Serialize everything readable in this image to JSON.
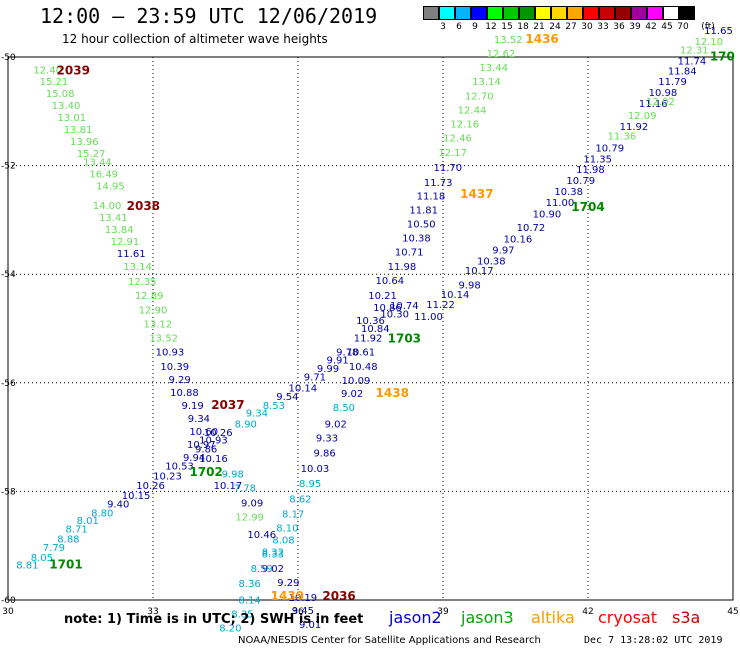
{
  "header": {
    "title": "12:00 – 23:59 UTC 12/06/2019",
    "subtitle": "12 hour collection of altimeter wave heights"
  },
  "legend": {
    "unit": "(ft)",
    "swatches": [
      {
        "color": "#7f7f7f",
        "label": "3"
      },
      {
        "color": "#00ffff",
        "label": "6"
      },
      {
        "color": "#00b4ff",
        "label": "9"
      },
      {
        "color": "#0000ff",
        "label": "12"
      },
      {
        "color": "#00ff00",
        "label": "15"
      },
      {
        "color": "#00c800",
        "label": "18"
      },
      {
        "color": "#009600",
        "label": "21"
      },
      {
        "color": "#ffff00",
        "label": "24"
      },
      {
        "color": "#ffd700",
        "label": "27"
      },
      {
        "color": "#ffa500",
        "label": "30"
      },
      {
        "color": "#ff0000",
        "label": "33"
      },
      {
        "color": "#c80000",
        "label": "36"
      },
      {
        "color": "#960000",
        "label": "39"
      },
      {
        "color": "#a000a0",
        "label": "42"
      },
      {
        "color": "#ff00ff",
        "label": "45"
      },
      {
        "color": "#ffffff",
        "label": "70"
      },
      {
        "color": "#000000",
        "label": ""
      }
    ]
  },
  "map": {
    "x_ticks": [
      "30",
      "33",
      "36",
      "39",
      "42",
      "45"
    ],
    "y_ticks": [
      "-50",
      "-52",
      "-54",
      "-56",
      "-58",
      "-60"
    ],
    "lon_range": [
      30,
      45
    ],
    "lat_range": [
      -50,
      -60
    ]
  },
  "colors": {
    "teal": "#00aacc",
    "lightgreen": "#66dd55",
    "navy": "#0000aa",
    "darkred": "#880000",
    "darkgreen": "#008800",
    "orange": "#ff9900"
  },
  "labels": [
    {
      "t": "12.40",
      "lon": 30.82,
      "lat": -50.3,
      "c": "lightgreen"
    },
    {
      "t": "15.21",
      "lon": 30.95,
      "lat": -50.52,
      "c": "lightgreen"
    },
    {
      "t": "15.08",
      "lon": 31.08,
      "lat": -50.74,
      "c": "lightgreen"
    },
    {
      "t": "13.40",
      "lon": 31.2,
      "lat": -50.96,
      "c": "lightgreen"
    },
    {
      "t": "13.01",
      "lon": 31.32,
      "lat": -51.18,
      "c": "lightgreen"
    },
    {
      "t": "13.81",
      "lon": 31.45,
      "lat": -51.4,
      "c": "lightgreen"
    },
    {
      "t": "13.96",
      "lon": 31.58,
      "lat": -51.62,
      "c": "lightgreen"
    },
    {
      "t": "15.27",
      "lon": 31.72,
      "lat": -51.84,
      "c": "lightgreen"
    },
    {
      "t": "13.44",
      "lon": 31.85,
      "lat": -52.0,
      "c": "lightgreen"
    },
    {
      "t": "16.49",
      "lon": 31.98,
      "lat": -52.22,
      "c": "lightgreen"
    },
    {
      "t": "14.95",
      "lon": 32.12,
      "lat": -52.44,
      "c": "lightgreen"
    },
    {
      "t": "14.00",
      "lon": 32.05,
      "lat": -52.8,
      "c": "lightgreen"
    },
    {
      "t": "13.41",
      "lon": 32.18,
      "lat": -53.02,
      "c": "lightgreen"
    },
    {
      "t": "13.84",
      "lon": 32.3,
      "lat": -53.24,
      "c": "lightgreen"
    },
    {
      "t": "12.91",
      "lon": 32.42,
      "lat": -53.46,
      "c": "lightgreen"
    },
    {
      "t": "11.61",
      "lon": 32.55,
      "lat": -53.68,
      "c": "navy"
    },
    {
      "t": "13.14",
      "lon": 32.68,
      "lat": -53.92,
      "c": "lightgreen"
    },
    {
      "t": "12.35",
      "lon": 32.78,
      "lat": -54.2,
      "c": "lightgreen"
    },
    {
      "t": "12.89",
      "lon": 32.92,
      "lat": -54.46,
      "c": "lightgreen"
    },
    {
      "t": "12.90",
      "lon": 33.0,
      "lat": -54.72,
      "c": "lightgreen"
    },
    {
      "t": "13.12",
      "lon": 33.1,
      "lat": -54.98,
      "c": "lightgreen"
    },
    {
      "t": "13.52",
      "lon": 33.22,
      "lat": -55.24,
      "c": "lightgreen"
    },
    {
      "t": "10.93",
      "lon": 33.35,
      "lat": -55.5,
      "c": "navy"
    },
    {
      "t": "10.39",
      "lon": 33.45,
      "lat": -55.76,
      "c": "navy"
    },
    {
      "t": "9.29",
      "lon": 33.55,
      "lat": -56.0,
      "c": "navy"
    },
    {
      "t": "10.88",
      "lon": 33.65,
      "lat": -56.24,
      "c": "navy"
    },
    {
      "t": "9.19",
      "lon": 33.82,
      "lat": -56.48,
      "c": "navy"
    },
    {
      "t": "9.34",
      "lon": 33.95,
      "lat": -56.72,
      "c": "navy"
    },
    {
      "t": "10.60",
      "lon": 34.05,
      "lat": -56.96,
      "c": "navy"
    },
    {
      "t": "10.26",
      "lon": 34.35,
      "lat": -56.98,
      "c": "navy"
    },
    {
      "t": "10.93",
      "lon": 34.25,
      "lat": -57.12,
      "c": "navy"
    },
    {
      "t": "10.97",
      "lon": 34.0,
      "lat": -57.2,
      "c": "navy"
    },
    {
      "t": "9.86",
      "lon": 34.1,
      "lat": -57.28,
      "c": "navy"
    },
    {
      "t": "9.94",
      "lon": 33.85,
      "lat": -57.44,
      "c": "navy"
    },
    {
      "t": "10.16",
      "lon": 34.25,
      "lat": -57.46,
      "c": "navy"
    },
    {
      "t": "10.53",
      "lon": 33.55,
      "lat": -57.6,
      "c": "navy"
    },
    {
      "t": "10.23",
      "lon": 33.3,
      "lat": -57.78,
      "c": "navy"
    },
    {
      "t": "10.26",
      "lon": 32.95,
      "lat": -57.96,
      "c": "navy"
    },
    {
      "t": "10.15",
      "lon": 32.65,
      "lat": -58.14,
      "c": "navy"
    },
    {
      "t": "9.40",
      "lon": 32.28,
      "lat": -58.3,
      "c": "navy"
    },
    {
      "t": "8.80",
      "lon": 31.95,
      "lat": -58.46,
      "c": "teal"
    },
    {
      "t": "8.01",
      "lon": 31.65,
      "lat": -58.6,
      "c": "teal"
    },
    {
      "t": "8.71",
      "lon": 31.42,
      "lat": -58.76,
      "c": "teal"
    },
    {
      "t": "8.88",
      "lon": 31.25,
      "lat": -58.94,
      "c": "teal"
    },
    {
      "t": "7.79",
      "lon": 30.95,
      "lat": -59.1,
      "c": "teal"
    },
    {
      "t": "8.05",
      "lon": 30.7,
      "lat": -59.28,
      "c": "teal"
    },
    {
      "t": "8.81",
      "lon": 30.4,
      "lat": -59.42,
      "c": "teal"
    },
    {
      "t": "10.17",
      "lon": 34.55,
      "lat": -57.96,
      "c": "navy"
    },
    {
      "t": "9.98",
      "lon": 34.65,
      "lat": -57.74,
      "c": "teal"
    },
    {
      "t": "8.90",
      "lon": 34.92,
      "lat": -56.82,
      "c": "teal"
    },
    {
      "t": "9.34",
      "lon": 35.15,
      "lat": -56.62,
      "c": "teal"
    },
    {
      "t": "8.53",
      "lon": 35.5,
      "lat": -56.48,
      "c": "teal"
    },
    {
      "t": "9.54",
      "lon": 35.78,
      "lat": -56.32,
      "c": "navy"
    },
    {
      "t": "10.14",
      "lon": 36.1,
      "lat": -56.16,
      "c": "navy"
    },
    {
      "t": "9.71",
      "lon": 36.35,
      "lat": -55.96,
      "c": "navy"
    },
    {
      "t": "9.99",
      "lon": 36.62,
      "lat": -55.8,
      "c": "navy"
    },
    {
      "t": "9.91",
      "lon": 36.82,
      "lat": -55.64,
      "c": "navy"
    },
    {
      "t": "9.78",
      "lon": 37.02,
      "lat": -55.5,
      "c": "navy"
    },
    {
      "t": "10.61",
      "lon": 37.3,
      "lat": -55.5,
      "c": "navy"
    },
    {
      "t": "10.48",
      "lon": 37.35,
      "lat": -55.76,
      "c": "navy"
    },
    {
      "t": "10.09",
      "lon": 37.2,
      "lat": -56.02,
      "c": "navy"
    },
    {
      "t": "9.02",
      "lon": 37.12,
      "lat": -56.26,
      "c": "navy"
    },
    {
      "t": "8.50",
      "lon": 36.95,
      "lat": -56.52,
      "c": "teal"
    },
    {
      "t": "9.02",
      "lon": 36.78,
      "lat": -56.82,
      "c": "navy"
    },
    {
      "t": "9.33",
      "lon": 36.6,
      "lat": -57.08,
      "c": "navy"
    },
    {
      "t": "9.86",
      "lon": 36.55,
      "lat": -57.36,
      "c": "navy"
    },
    {
      "t": "10.03",
      "lon": 36.35,
      "lat": -57.64,
      "c": "navy"
    },
    {
      "t": "8.95",
      "lon": 36.25,
      "lat": -57.92,
      "c": "teal"
    },
    {
      "t": "8.62",
      "lon": 36.05,
      "lat": -58.2,
      "c": "teal"
    },
    {
      "t": "8.17",
      "lon": 35.9,
      "lat": -58.48,
      "c": "teal"
    },
    {
      "t": "8.10",
      "lon": 35.78,
      "lat": -58.74,
      "c": "teal"
    },
    {
      "t": "8.08",
      "lon": 35.7,
      "lat": -58.96,
      "c": "teal"
    },
    {
      "t": "8.32",
      "lon": 35.48,
      "lat": -59.18,
      "c": "teal"
    },
    {
      "t": "8.33",
      "lon": 35.48,
      "lat": -59.22,
      "c": "teal"
    },
    {
      "t": "9.02",
      "lon": 35.48,
      "lat": -59.48,
      "c": "navy"
    },
    {
      "t": "9.29",
      "lon": 35.8,
      "lat": -59.74,
      "c": "navy"
    },
    {
      "t": "10.19",
      "lon": 36.1,
      "lat": -60.02,
      "c": "navy"
    },
    {
      "t": "9.45",
      "lon": 36.1,
      "lat": -60.26,
      "c": "navy"
    },
    {
      "t": "9.01",
      "lon": 36.25,
      "lat": -60.52,
      "c": "navy"
    },
    {
      "t": "9.09",
      "lon": 35.05,
      "lat": -58.28,
      "c": "navy"
    },
    {
      "t": "12.99",
      "lon": 35.0,
      "lat": -58.54,
      "c": "lightgreen"
    },
    {
      "t": "10.46",
      "lon": 35.25,
      "lat": -58.86,
      "c": "navy"
    },
    {
      "t": "8.59",
      "lon": 35.25,
      "lat": -59.48,
      "c": "teal"
    },
    {
      "t": "8.36",
      "lon": 35.0,
      "lat": -59.76,
      "c": "teal"
    },
    {
      "t": "8.14",
      "lon": 35.0,
      "lat": -60.06,
      "c": "teal"
    },
    {
      "t": "8.35",
      "lon": 34.85,
      "lat": -60.32,
      "c": "teal"
    },
    {
      "t": "8.20",
      "lon": 34.6,
      "lat": -60.58,
      "c": "teal"
    },
    {
      "t": "7.78",
      "lon": 34.9,
      "lat": -58.0,
      "c": "teal"
    },
    {
      "t": "11.92",
      "lon": 37.45,
      "lat": -55.24,
      "c": "navy"
    },
    {
      "t": "10.84",
      "lon": 37.6,
      "lat": -55.06,
      "c": "navy"
    },
    {
      "t": "10.36",
      "lon": 37.5,
      "lat": -54.92,
      "c": "navy"
    },
    {
      "t": "10.74",
      "lon": 38.2,
      "lat": -54.64,
      "c": "navy"
    },
    {
      "t": "10.86",
      "lon": 37.85,
      "lat": -54.68,
      "c": "navy"
    },
    {
      "t": "10.30",
      "lon": 38.0,
      "lat": -54.8,
      "c": "navy"
    },
    {
      "t": "10.21",
      "lon": 37.75,
      "lat": -54.46,
      "c": "navy"
    },
    {
      "t": "10.64",
      "lon": 37.9,
      "lat": -54.18,
      "c": "navy"
    },
    {
      "t": "11.98",
      "lon": 38.15,
      "lat": -53.92,
      "c": "navy"
    },
    {
      "t": "10.71",
      "lon": 38.3,
      "lat": -53.66,
      "c": "navy"
    },
    {
      "t": "10.38",
      "lon": 38.45,
      "lat": -53.4,
      "c": "navy"
    },
    {
      "t": "10.50",
      "lon": 38.55,
      "lat": -53.14,
      "c": "navy"
    },
    {
      "t": "11.81",
      "lon": 38.6,
      "lat": -52.88,
      "c": "navy"
    },
    {
      "t": "11.18",
      "lon": 38.75,
      "lat": -52.62,
      "c": "navy"
    },
    {
      "t": "11.73",
      "lon": 38.9,
      "lat": -52.38,
      "c": "navy"
    },
    {
      "t": "11.70",
      "lon": 39.1,
      "lat": -52.1,
      "c": "navy"
    },
    {
      "t": "12.17",
      "lon": 39.2,
      "lat": -51.82,
      "c": "lightgreen"
    },
    {
      "t": "12.46",
      "lon": 39.3,
      "lat": -51.56,
      "c": "lightgreen"
    },
    {
      "t": "12.16",
      "lon": 39.45,
      "lat": -51.3,
      "c": "lightgreen"
    },
    {
      "t": "12.44",
      "lon": 39.6,
      "lat": -51.04,
      "c": "lightgreen"
    },
    {
      "t": "12.70",
      "lon": 39.75,
      "lat": -50.78,
      "c": "lightgreen"
    },
    {
      "t": "13.14",
      "lon": 39.9,
      "lat": -50.52,
      "c": "lightgreen"
    },
    {
      "t": "13.44",
      "lon": 40.05,
      "lat": -50.26,
      "c": "lightgreen"
    },
    {
      "t": "12.62",
      "lon": 40.2,
      "lat": -50.0,
      "c": "lightgreen"
    },
    {
      "t": "13.52",
      "lon": 40.35,
      "lat": -49.74,
      "c": "lightgreen"
    },
    {
      "t": "11.00",
      "lon": 38.7,
      "lat": -54.84,
      "c": "navy"
    },
    {
      "t": "11.22",
      "lon": 38.95,
      "lat": -54.62,
      "c": "navy"
    },
    {
      "t": "10.14",
      "lon": 39.25,
      "lat": -54.44,
      "c": "navy"
    },
    {
      "t": "9.98",
      "lon": 39.55,
      "lat": -54.26,
      "c": "navy"
    },
    {
      "t": "10.17",
      "lon": 39.75,
      "lat": -54.0,
      "c": "navy"
    },
    {
      "t": "10.38",
      "lon": 40.0,
      "lat": -53.82,
      "c": "navy"
    },
    {
      "t": "9.97",
      "lon": 40.25,
      "lat": -53.62,
      "c": "navy"
    },
    {
      "t": "10.16",
      "lon": 40.55,
      "lat": -53.42,
      "c": "navy"
    },
    {
      "t": "10.72",
      "lon": 40.82,
      "lat": -53.2,
      "c": "navy"
    },
    {
      "t": "10.90",
      "lon": 41.15,
      "lat": -52.96,
      "c": "navy"
    },
    {
      "t": "11.00",
      "lon": 41.42,
      "lat": -52.74,
      "c": "navy"
    },
    {
      "t": "10.38",
      "lon": 41.6,
      "lat": -52.54,
      "c": "navy"
    },
    {
      "t": "10.79",
      "lon": 41.85,
      "lat": -52.34,
      "c": "navy"
    },
    {
      "t": "11.98",
      "lon": 42.05,
      "lat": -52.14,
      "c": "navy"
    },
    {
      "t": "11.35",
      "lon": 42.2,
      "lat": -51.94,
      "c": "navy"
    },
    {
      "t": "10.79",
      "lon": 42.45,
      "lat": -51.74,
      "c": "navy"
    },
    {
      "t": "11.36",
      "lon": 42.7,
      "lat": -51.52,
      "c": "lightgreen"
    },
    {
      "t": "11.92",
      "lon": 42.95,
      "lat": -51.34,
      "c": "navy"
    },
    {
      "t": "12.09",
      "lon": 43.12,
      "lat": -51.14,
      "c": "lightgreen"
    },
    {
      "t": "11.16",
      "lon": 43.35,
      "lat": -50.92,
      "c": "navy"
    },
    {
      "t": "10.98",
      "lon": 43.55,
      "lat": -50.72,
      "c": "navy"
    },
    {
      "t": "11.79",
      "lon": 43.75,
      "lat": -50.52,
      "c": "navy"
    },
    {
      "t": "12.02",
      "lon": 43.5,
      "lat": -50.88,
      "c": "lightgreen"
    },
    {
      "t": "11.84",
      "lon": 43.95,
      "lat": -50.32,
      "c": "navy"
    },
    {
      "t": "11.74",
      "lon": 44.15,
      "lat": -50.14,
      "c": "navy"
    },
    {
      "t": "12.31",
      "lon": 44.2,
      "lat": -49.94,
      "c": "lightgreen"
    },
    {
      "t": "12.10",
      "lon": 44.5,
      "lat": -49.78,
      "c": "lightgreen"
    },
    {
      "t": "11.65",
      "lon": 44.7,
      "lat": -49.58,
      "c": "navy"
    }
  ],
  "track_ids": [
    {
      "t": "2039",
      "lon": 31.35,
      "lat": -50.32,
      "c": "darkred"
    },
    {
      "t": "2038",
      "lon": 32.8,
      "lat": -52.82,
      "c": "darkred"
    },
    {
      "t": "2037",
      "lon": 34.55,
      "lat": -56.48,
      "c": "darkred"
    },
    {
      "t": "2036",
      "lon": 36.85,
      "lat": -60.0,
      "c": "darkred"
    },
    {
      "t": "1436",
      "lon": 41.05,
      "lat": -49.74,
      "c": "orange"
    },
    {
      "t": "1437",
      "lon": 39.7,
      "lat": -52.6,
      "c": "orange"
    },
    {
      "t": "1438",
      "lon": 37.95,
      "lat": -56.26,
      "c": "orange"
    },
    {
      "t": "1439",
      "lon": 35.78,
      "lat": -60.0,
      "c": "orange"
    },
    {
      "t": "1701",
      "lon": 31.2,
      "lat": -59.42,
      "c": "darkgreen"
    },
    {
      "t": "1702",
      "lon": 34.1,
      "lat": -57.72,
      "c": "darkgreen"
    },
    {
      "t": "1703",
      "lon": 38.2,
      "lat": -55.26,
      "c": "darkgreen"
    },
    {
      "t": "1704",
      "lon": 42.0,
      "lat": -52.84,
      "c": "darkgreen"
    },
    {
      "t": "170",
      "lon": 44.78,
      "lat": -50.06,
      "c": "darkgreen"
    }
  ],
  "footer": {
    "note": "note: 1) Time is in UTC; 2) SWH is in feet",
    "satellites": [
      {
        "name": "jason2",
        "color": "#0000dd"
      },
      {
        "name": "jason3",
        "color": "#00aa00"
      },
      {
        "name": "altika",
        "color": "#ff9900"
      },
      {
        "name": "cryosat",
        "color": "#ff0000"
      },
      {
        "name": "s3a",
        "color": "#cc0000"
      }
    ],
    "credit": "NOAA/NESDIS Center for Satellite Applications and Research",
    "timestamp": "Dec  7 13:28:02 UTC 2019"
  }
}
